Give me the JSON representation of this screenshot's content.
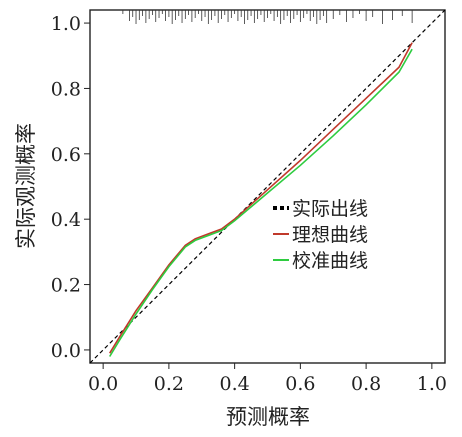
{
  "chart_data": {
    "type": "line",
    "title": "",
    "xlabel": "预测概率",
    "ylabel": "实际观测概率",
    "xlim": [
      -0.04,
      1.04
    ],
    "ylim": [
      -0.04,
      1.04
    ],
    "grid": false,
    "legend_position": "center-right",
    "x_ticks": [
      "0.0",
      "0.2",
      "0.4",
      "0.6",
      "0.8",
      "1.0"
    ],
    "y_ticks": [
      "0.0",
      "0.2",
      "0.4",
      "0.6",
      "0.8",
      "1.0"
    ],
    "x_tick_values": [
      0,
      0.2,
      0.4,
      0.6,
      0.8,
      1.0
    ],
    "y_tick_values": [
      0,
      0.2,
      0.4,
      0.6,
      0.8,
      1.0
    ],
    "series": [
      {
        "name": "实际出线",
        "style": "dashed",
        "color": "#000000",
        "x": [
          -0.04,
          1.04
        ],
        "y": [
          -0.04,
          1.04
        ]
      },
      {
        "name": "理想曲线",
        "style": "solid",
        "color": "#c0392b",
        "x": [
          0.02,
          0.05,
          0.1,
          0.15,
          0.2,
          0.25,
          0.28,
          0.32,
          0.36,
          0.4,
          0.5,
          0.6,
          0.7,
          0.8,
          0.9,
          0.94
        ],
        "y": [
          -0.01,
          0.04,
          0.12,
          0.19,
          0.26,
          0.32,
          0.34,
          0.355,
          0.37,
          0.4,
          0.49,
          0.58,
          0.675,
          0.77,
          0.865,
          0.94
        ]
      },
      {
        "name": "校准曲线",
        "style": "solid",
        "color": "#2ecc40",
        "x": [
          0.02,
          0.05,
          0.1,
          0.15,
          0.2,
          0.25,
          0.28,
          0.32,
          0.36,
          0.4,
          0.5,
          0.6,
          0.7,
          0.8,
          0.9,
          0.94
        ],
        "y": [
          -0.02,
          0.03,
          0.11,
          0.185,
          0.255,
          0.315,
          0.335,
          0.35,
          0.365,
          0.395,
          0.48,
          0.565,
          0.655,
          0.75,
          0.85,
          0.92
        ]
      }
    ],
    "rug": {
      "position": "top",
      "x": [
        0.06,
        0.08,
        0.09,
        0.1,
        0.11,
        0.12,
        0.13,
        0.14,
        0.15,
        0.16,
        0.17,
        0.18,
        0.19,
        0.2,
        0.21,
        0.22,
        0.23,
        0.24,
        0.25,
        0.26,
        0.27,
        0.28,
        0.29,
        0.3,
        0.31,
        0.32,
        0.33,
        0.34,
        0.35,
        0.36,
        0.37,
        0.38,
        0.39,
        0.4,
        0.41,
        0.42,
        0.43,
        0.44,
        0.45,
        0.46,
        0.47,
        0.48,
        0.49,
        0.5,
        0.51,
        0.52,
        0.53,
        0.54,
        0.55,
        0.56,
        0.57,
        0.58,
        0.59,
        0.6,
        0.61,
        0.62,
        0.63,
        0.64,
        0.65,
        0.66,
        0.67,
        0.68,
        0.7,
        0.72,
        0.74,
        0.76,
        0.78,
        0.8,
        0.82,
        0.85,
        0.88,
        0.91,
        0.94
      ]
    }
  }
}
